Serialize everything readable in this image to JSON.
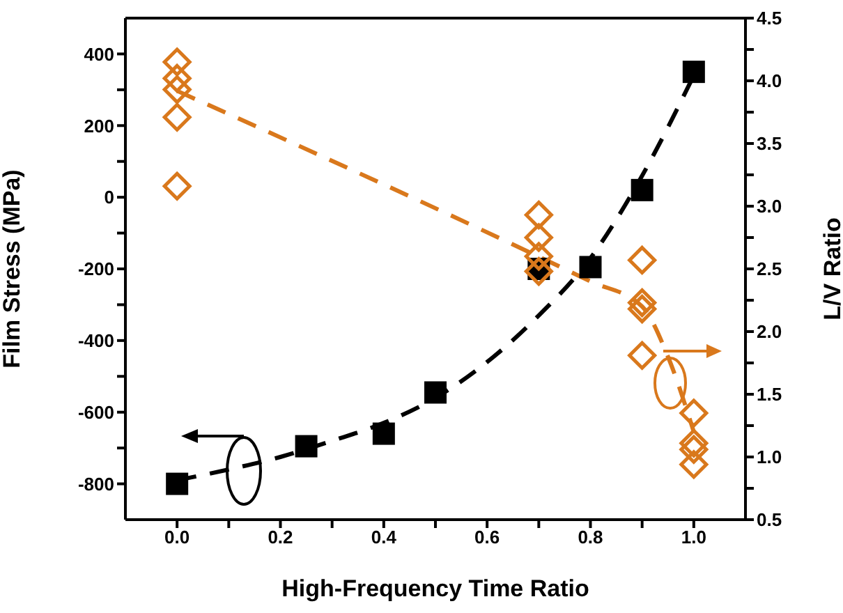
{
  "chart_data": {
    "type": "scatter",
    "xlabel": "High-Frequency Time Ratio",
    "ylabel": "Film Stress (MPa)",
    "y2label": "L/V Ratio",
    "xlim": [
      -0.1,
      1.1
    ],
    "xticks": [
      {
        "value": 0,
        "label": "0.0"
      },
      {
        "value": 0.1,
        "label": null
      },
      {
        "value": 0.2,
        "label": "0.2"
      },
      {
        "value": 0.3,
        "label": null
      },
      {
        "value": 0.4,
        "label": "0.4"
      },
      {
        "value": 0.5,
        "label": null
      },
      {
        "value": 0.6,
        "label": "0.6"
      },
      {
        "value": 0.7,
        "label": null
      },
      {
        "value": 0.8,
        "label": "0.8"
      },
      {
        "value": 0.9,
        "label": null
      },
      {
        "value": 1,
        "label": "1.0"
      }
    ],
    "ylim": [
      -900,
      500
    ],
    "yticks": [
      -800,
      {
        "value": -700,
        "label": null
      },
      -600,
      {
        "value": -500,
        "label": null
      },
      -400,
      {
        "value": -300,
        "label": null
      },
      -200,
      {
        "value": -100,
        "label": null
      },
      0,
      {
        "value": 100,
        "label": null
      },
      200,
      {
        "value": 300,
        "label": null
      },
      400
    ],
    "y2lim": [
      0.5,
      4.5
    ],
    "y2ticks": [
      {
        "value": 0.5,
        "label": "0.5"
      },
      {
        "value": 0.75,
        "label": null
      },
      {
        "value": 1,
        "label": "1.0"
      },
      {
        "value": 1.25,
        "label": null
      },
      {
        "value": 1.5,
        "label": "1.5"
      },
      {
        "value": 1.75,
        "label": null
      },
      {
        "value": 2,
        "label": "2.0"
      },
      {
        "value": 2.25,
        "label": null
      },
      {
        "value": 2.5,
        "label": "2.5"
      },
      {
        "value": 2.75,
        "label": null
      },
      {
        "value": 3,
        "label": "3.0"
      },
      {
        "value": 3.25,
        "label": null
      },
      {
        "value": 3.5,
        "label": "3.5"
      },
      {
        "value": 3.75,
        "label": null
      },
      {
        "value": 4,
        "label": "4.0"
      },
      {
        "value": 4.25,
        "label": null
      },
      {
        "value": 4.5,
        "label": "4.5"
      }
    ],
    "grid": false,
    "series": [
      {
        "type": "line",
        "color": "#000000",
        "line_style": "dashed",
        "marker": "none",
        "x": [
          0,
          0.1,
          0.2,
          0.3,
          0.4,
          0.5,
          0.6,
          0.7,
          0.8,
          0.9,
          1.0
        ],
        "values": [
          -790,
          -760,
          -725,
          -680,
          -630,
          -560,
          -460,
          -330,
          -170,
          60,
          340
        ]
      },
      {
        "color": "#000000",
        "marker": "square",
        "x": [
          0,
          0.25,
          0.4,
          0.5,
          0.7,
          0.8,
          0.9,
          1.0
        ],
        "values": [
          -800,
          -695,
          -660,
          -545,
          -200,
          -195,
          20,
          350
        ]
      },
      {
        "type": "line",
        "axis": "y2",
        "color": "#d9781c",
        "line_style": "dashed",
        "marker": "none",
        "x": [
          0,
          0.8,
          0.9,
          0.95,
          1.0
        ],
        "values": [
          3.92,
          2.4,
          2.2,
          1.8,
          1.2
        ]
      },
      {
        "axis": "y2",
        "color": "#d9781c",
        "marker": "diamond",
        "x": [
          0,
          0,
          0,
          0,
          0,
          0.7,
          0.7,
          0.7,
          0.7,
          0.9,
          0.9,
          0.9,
          0.9,
          1.0,
          1.0,
          1.0,
          1.0
        ],
        "values": [
          4.15,
          4.02,
          3.93,
          3.71,
          3.16,
          2.93,
          2.75,
          2.6,
          2.48,
          2.57,
          2.23,
          2.18,
          1.81,
          1.35,
          1.11,
          1.06,
          0.94
        ]
      }
    ]
  }
}
